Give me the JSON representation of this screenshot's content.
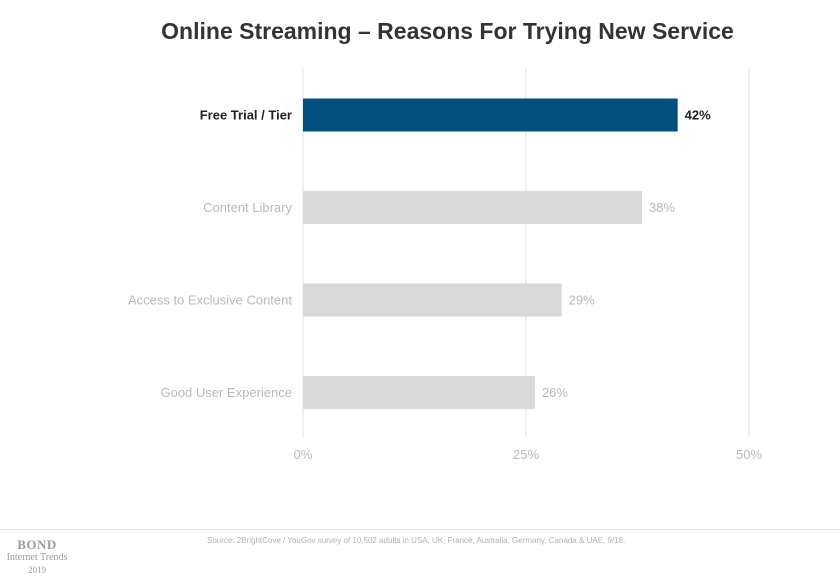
{
  "title": "Online Streaming – Reasons For Trying New Service",
  "source": "Source: 2BrightCove / YouGov survey of 10,502 adults in USA, UK, France, Australia, Germany, Canada & UAE, 9/18.",
  "logo": {
    "brand": "BOND",
    "subtitle": "Internet Trends",
    "year": "2019"
  },
  "colors": {
    "highlight": "#00507c",
    "bar": "#d9d9d9",
    "highlight_text": "#222222",
    "muted_text": "#b8b8b8",
    "grid": "#e0e0e0"
  },
  "chart_data": {
    "type": "bar",
    "orientation": "horizontal",
    "categories": [
      "Free Trial / Tier",
      "Content Library",
      "Access to Exclusive Content",
      "Good User Experience"
    ],
    "values": [
      42,
      38,
      29,
      26
    ],
    "value_labels": [
      "42%",
      "38%",
      "29%",
      "26%"
    ],
    "highlighted_index": 0,
    "xlim": [
      0,
      50
    ],
    "xticks": [
      0,
      25,
      50
    ],
    "xtick_labels": [
      "0%",
      "25%",
      "50%"
    ],
    "grid": true
  }
}
